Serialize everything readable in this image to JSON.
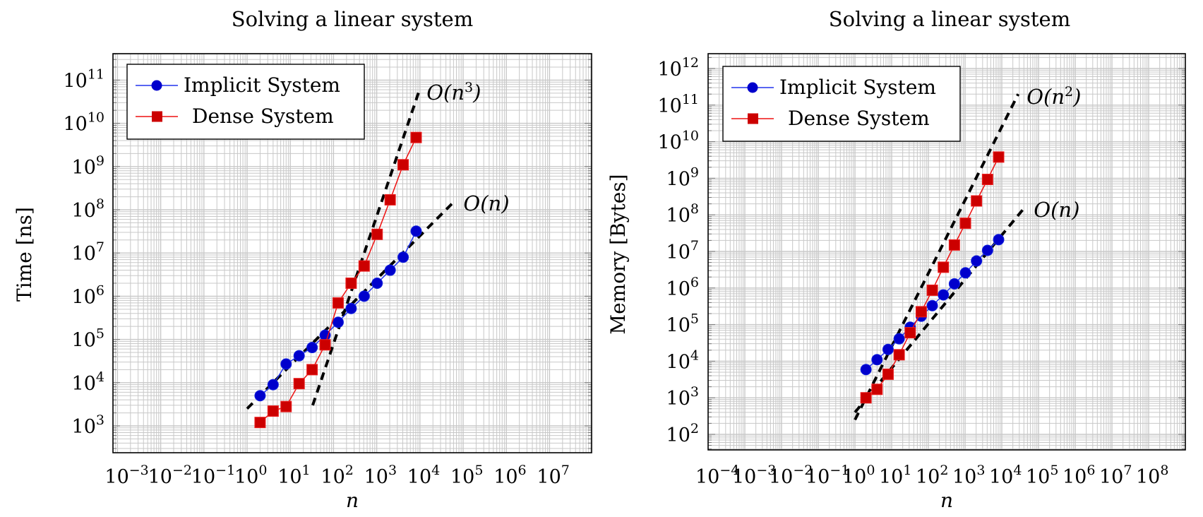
{
  "chart_data": [
    {
      "type": "line",
      "title": "Solving a linear system",
      "xlabel": "n",
      "ylabel": "Time [ns]",
      "xscale": "log",
      "yscale": "log",
      "xlim": [
        0.00047,
        7000000
      ],
      "ylim": [
        150,
        300000000000
      ],
      "grid": "major and minor",
      "legend_position": "top-left",
      "x_tick_labels": [
        {
          "base": "10",
          "exp": "−3",
          "value": -3
        },
        {
          "base": "10",
          "exp": "−2",
          "value": -2
        },
        {
          "base": "10",
          "exp": "−1",
          "value": -1
        },
        {
          "base": "10",
          "exp": "0",
          "value": 0
        },
        {
          "base": "10",
          "exp": "1",
          "value": 1
        },
        {
          "base": "10",
          "exp": "2",
          "value": 2
        },
        {
          "base": "10",
          "exp": "3",
          "value": 3
        },
        {
          "base": "10",
          "exp": "4",
          "value": 4
        },
        {
          "base": "10",
          "exp": "5",
          "value": 5
        },
        {
          "base": "10",
          "exp": "6",
          "value": 6
        },
        {
          "base": "10",
          "exp": "7",
          "value": 7
        }
      ],
      "y_tick_labels": [
        {
          "base": "10",
          "exp": "3",
          "value": 3
        },
        {
          "base": "10",
          "exp": "4",
          "value": 4
        },
        {
          "base": "10",
          "exp": "5",
          "value": 5
        },
        {
          "base": "10",
          "exp": "6",
          "value": 6
        },
        {
          "base": "10",
          "exp": "7",
          "value": 7
        },
        {
          "base": "10",
          "exp": "8",
          "value": 8
        },
        {
          "base": "10",
          "exp": "9",
          "value": 9
        },
        {
          "base": "10",
          "exp": "10",
          "value": 10
        },
        {
          "base": "10",
          "exp": "11",
          "value": 11
        }
      ],
      "x": [
        2,
        4,
        8,
        16,
        32,
        64,
        128,
        256,
        512,
        1024,
        2048,
        4096,
        8192
      ],
      "series": [
        {
          "name": "Implicit System",
          "color": "#0000cc",
          "marker": "circle",
          "values": [
            5000,
            9000,
            27000,
            42000,
            65000,
            125000,
            250000,
            520000,
            1000000,
            2000000,
            4000000,
            8000000,
            32000000
          ]
        },
        {
          "name": "Dense System",
          "color": "#cc0000",
          "marker": "square",
          "values": [
            1200,
            2200,
            2800,
            9500,
            20000,
            75000,
            700000,
            2000000,
            5000000,
            27000000,
            170000000,
            1100000000,
            4700000000
          ]
        }
      ],
      "reference_lines": [
        {
          "label_base": "O(n",
          "label_exp": "3",
          "label_end": ")",
          "slope": 3,
          "x_start": 33,
          "x_end": 9800,
          "y_start": 3000,
          "y_end": 60000000000
        },
        {
          "label_base": "O(n)",
          "label_exp": "",
          "label_end": "",
          "slope": 1,
          "x_start": 1,
          "x_end": 60000,
          "y_start": 2500,
          "y_end": 150000000
        }
      ]
    },
    {
      "type": "line",
      "title": "Solving a linear system",
      "xlabel": "n",
      "ylabel": "Memory [Bytes]",
      "xscale": "log",
      "yscale": "log",
      "xlim": [
        7e-05,
        400000000
      ],
      "ylim": [
        40,
        2500000000000
      ],
      "grid": "major and minor",
      "legend_position": "top-left",
      "x_tick_labels": [
        {
          "base": "10",
          "exp": "−4",
          "value": -4
        },
        {
          "base": "10",
          "exp": "−3",
          "value": -3
        },
        {
          "base": "10",
          "exp": "−2",
          "value": -2
        },
        {
          "base": "10",
          "exp": "−1",
          "value": -1
        },
        {
          "base": "10",
          "exp": "0",
          "value": 0
        },
        {
          "base": "10",
          "exp": "1",
          "value": 1
        },
        {
          "base": "10",
          "exp": "2",
          "value": 2
        },
        {
          "base": "10",
          "exp": "3",
          "value": 3
        },
        {
          "base": "10",
          "exp": "4",
          "value": 4
        },
        {
          "base": "10",
          "exp": "5",
          "value": 5
        },
        {
          "base": "10",
          "exp": "6",
          "value": 6
        },
        {
          "base": "10",
          "exp": "7",
          "value": 7
        },
        {
          "base": "10",
          "exp": "8",
          "value": 8
        }
      ],
      "y_tick_labels": [
        {
          "base": "10",
          "exp": "2",
          "value": 2
        },
        {
          "base": "10",
          "exp": "3",
          "value": 3
        },
        {
          "base": "10",
          "exp": "4",
          "value": 4
        },
        {
          "base": "10",
          "exp": "5",
          "value": 5
        },
        {
          "base": "10",
          "exp": "6",
          "value": 6
        },
        {
          "base": "10",
          "exp": "7",
          "value": 7
        },
        {
          "base": "10",
          "exp": "8",
          "value": 8
        },
        {
          "base": "10",
          "exp": "9",
          "value": 9
        },
        {
          "base": "10",
          "exp": "10",
          "value": 10
        },
        {
          "base": "10",
          "exp": "11",
          "value": 11
        },
        {
          "base": "10",
          "exp": "12",
          "value": 12
        }
      ],
      "x": [
        2,
        4,
        8,
        16,
        32,
        64,
        128,
        256,
        512,
        1024,
        2048,
        4096,
        8192
      ],
      "series": [
        {
          "name": "Implicit System",
          "color": "#0000cc",
          "marker": "circle",
          "values": [
            5900,
            11000,
            21000,
            41000,
            85000,
            170000,
            330000,
            650000,
            1300000,
            2600000,
            5500000,
            10700000,
            21000000
          ]
        },
        {
          "name": "Dense System",
          "color": "#cc0000",
          "marker": "square",
          "values": [
            1000,
            1700,
            4400,
            15000,
            60000,
            225000,
            870000,
            3700000,
            15000000,
            59000000,
            240000000,
            930000000,
            3800000000
          ]
        }
      ],
      "reference_lines": [
        {
          "label_base": "O(n",
          "label_exp": "2",
          "label_end": ")",
          "slope": 2,
          "x_start": 1,
          "x_end": 28000,
          "y_start": 250,
          "y_end": 200000000000
        },
        {
          "label_base": "O(n)",
          "label_exp": "",
          "label_end": "",
          "slope": 1,
          "x_start": 1,
          "x_end": 40000,
          "y_start": 400,
          "y_end": 150000000
        }
      ]
    }
  ]
}
